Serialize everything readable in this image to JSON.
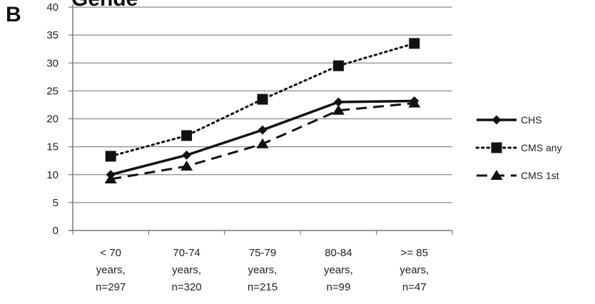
{
  "panel": {
    "letter": "B",
    "partial_title": "Gende"
  },
  "chart_data": {
    "type": "line",
    "categories": [
      [
        "< 70",
        "years,",
        "n=297"
      ],
      [
        "70-74",
        "years,",
        "n=320"
      ],
      [
        "75-79",
        "years,",
        "n=215"
      ],
      [
        "80-84",
        "years,",
        "n=99"
      ],
      [
        ">= 85",
        "years,",
        "n=47"
      ]
    ],
    "series": [
      {
        "name": "CHS",
        "values": [
          10,
          13.5,
          18,
          23,
          23.2
        ],
        "marker": "diamond",
        "line": "solid",
        "color": "#111111"
      },
      {
        "name": "CMS any",
        "values": [
          13.3,
          17,
          23.5,
          29.5,
          33.5
        ],
        "marker": "square",
        "line": "dotted",
        "color": "#111111"
      },
      {
        "name": "CMS 1st",
        "values": [
          9.2,
          11.5,
          15.5,
          21.5,
          22.8
        ],
        "marker": "triangle",
        "line": "dashed",
        "color": "#111111"
      }
    ],
    "yticks": [
      "0",
      "5",
      "10",
      "15",
      "20",
      "25",
      "30",
      "35",
      "40"
    ],
    "ylim": [
      0,
      40
    ],
    "grid": true,
    "legend_position": "right"
  }
}
